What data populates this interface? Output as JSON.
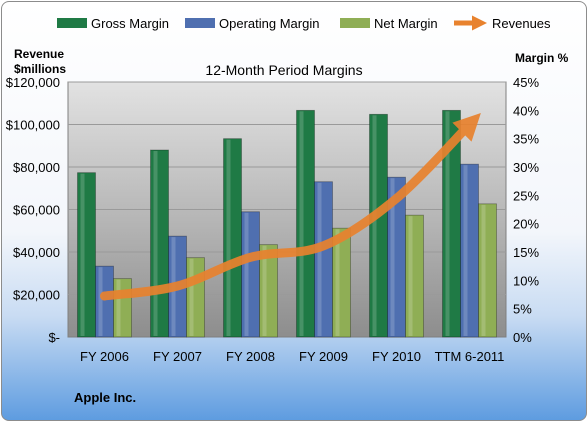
{
  "chart_data": {
    "type": "bar",
    "title": "12-Month Period Margins",
    "company": "Apple Inc.",
    "y_left_label": [
      "Revenue",
      "$millions"
    ],
    "y_right_label": "Margin %",
    "categories": [
      "FY 2006",
      "FY 2007",
      "FY 2008",
      "FY 2009",
      "FY 2010",
      "TTM 6-2011"
    ],
    "y_left_ticks": [
      "$-",
      "$20,000",
      "$40,000",
      "$60,000",
      "$80,000",
      "$100,000",
      "$120,000"
    ],
    "y_right_ticks": [
      "0%",
      "5%",
      "10%",
      "15%",
      "20%",
      "25%",
      "30%",
      "35%",
      "40%",
      "45%"
    ],
    "y_left_range": [
      0,
      120000
    ],
    "y_right_range": [
      0,
      45
    ],
    "legend_position": "top",
    "series": [
      {
        "name": "Gross Margin",
        "axis": "right",
        "type": "bar",
        "color": "#1f7a45",
        "values": [
          29,
          33,
          35,
          40,
          39.3,
          40
        ]
      },
      {
        "name": "Operating Margin",
        "axis": "right",
        "type": "bar",
        "color": "#4f6fb0",
        "values": [
          12.5,
          17.8,
          22.1,
          27.4,
          28.2,
          30.5
        ]
      },
      {
        "name": "Net Margin",
        "axis": "right",
        "type": "bar",
        "color": "#8fae55",
        "values": [
          10.3,
          14,
          16.3,
          19.2,
          21.5,
          23.5
        ]
      },
      {
        "name": "Revenues",
        "axis": "left",
        "type": "line",
        "color": "#e8822e",
        "values": [
          19300,
          24000,
          37500,
          42900,
          65200,
          100000
        ]
      }
    ]
  }
}
